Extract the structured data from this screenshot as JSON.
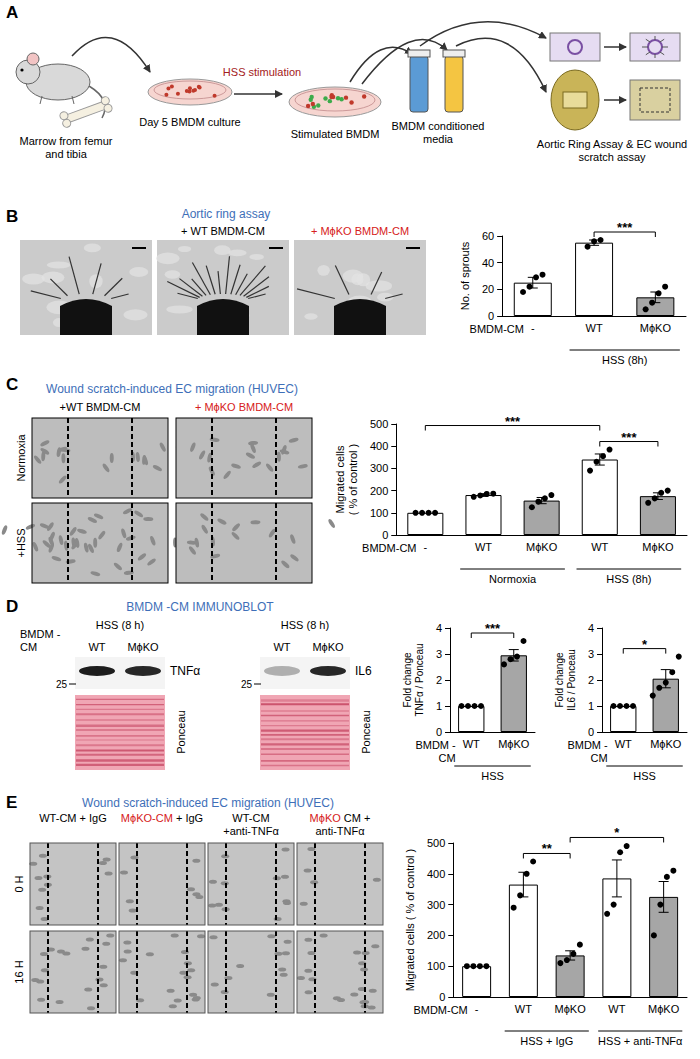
{
  "panels": {
    "A": {
      "letter": "A",
      "marrow": "Marrow from femur and tibia",
      "culture": "Day 5 BMDM culture",
      "stimulation": "HSS stimulation",
      "stimulated": "Stimulated BMDM",
      "media": "BMDM conditioned media",
      "assay": "Aortic Ring Assay & EC wound scratch assay"
    },
    "B": {
      "letter": "B",
      "header": "Aortic ring assay",
      "image_titles": [
        "+ WT BMDM-CM",
        "+ MϕKO BMDM-CM"
      ]
    },
    "C": {
      "letter": "C",
      "header": "Wound scratch-induced EC migration (HUVEC)",
      "columns": [
        "+WT BMDM-CM",
        "+ MϕKO BMDM-CM"
      ],
      "rows": [
        "Normoxia",
        "+HSS"
      ]
    },
    "D": {
      "letter": "D",
      "header": "BMDM -CM IMMUNOBLOT",
      "blots": [
        {
          "condition": "HSS (8 h)",
          "row_label": "BMDM - CM",
          "lanes": [
            "WT",
            "MϕKO"
          ],
          "protein": "TNFα",
          "marker": 25,
          "loading": "Ponceau"
        },
        {
          "condition": "HSS (8 h)",
          "lanes": [
            "WT",
            "MϕKO"
          ],
          "protein": "IL6",
          "marker": 25,
          "loading": "Ponceau"
        }
      ]
    },
    "E": {
      "letter": "E",
      "header": "Wound scratch-induced EC migration (HUVEC)",
      "columns": [
        "WT-CM + IgG",
        "MϕKO-CM + IgG",
        "WT-CM +anti-TNFα",
        "MϕKO CM + anti-TNFα"
      ],
      "rows": [
        "0 H",
        "16 H"
      ]
    }
  },
  "chart_data": [
    {
      "type": "bar",
      "y_label": "No. of sprouts",
      "row_label": "BMDM-CM",
      "categories": [
        "-",
        "WT",
        "MϕKO"
      ],
      "values": [
        25,
        55,
        14
      ],
      "errors": [
        4,
        2,
        4
      ],
      "points": [
        [
          18,
          22,
          29,
          31
        ],
        [
          52,
          56,
          57
        ],
        [
          5,
          10,
          17,
          22
        ]
      ],
      "colors": [
        "#ffffff",
        "#ffffff",
        "#a6a6a6"
      ],
      "ylim": [
        0,
        60
      ],
      "yticks": [
        0,
        20,
        40,
        60
      ],
      "grid": false,
      "significance": [
        {
          "label": "***",
          "from": 1,
          "to": 2
        }
      ],
      "groups": [
        {
          "label": "HSS (8h)",
          "from": 1,
          "to": 2
        }
      ]
    },
    {
      "type": "bar",
      "y_label": "Migrated cells ( % of control )",
      "row_label": "BMDM-CM",
      "categories": [
        "-",
        "WT",
        "MϕKO",
        "WT",
        "MϕKO"
      ],
      "values": [
        100,
        180,
        155,
        340,
        175
      ],
      "errors": [
        0,
        6,
        14,
        25,
        15
      ],
      "points": [
        [
          100,
          100,
          100,
          100
        ],
        [
          172,
          178,
          185,
          186
        ],
        [
          125,
          150,
          165,
          180
        ],
        [
          290,
          330,
          355,
          385
        ],
        [
          145,
          165,
          190,
          200
        ]
      ],
      "colors": [
        "#ffffff",
        "#ffffff",
        "#a6a6a6",
        "#ffffff",
        "#a6a6a6"
      ],
      "ylim": [
        0,
        500
      ],
      "yticks": [
        0,
        100,
        200,
        300,
        400,
        500
      ],
      "grid": false,
      "significance": [
        {
          "label": "***",
          "from": 3,
          "to": 4
        },
        {
          "label": "***",
          "from": 0,
          "to": 3
        }
      ],
      "groups": [
        {
          "label": "Normoxia",
          "from": 1,
          "to": 2
        },
        {
          "label": "HSS (8h)",
          "from": 3,
          "to": 4
        }
      ]
    },
    {
      "type": "bar",
      "y_label": "Fold change TNFα / Ponceau",
      "row_label": "BMDM - CM",
      "categories": [
        "WT",
        "MϕKO"
      ],
      "values": [
        1,
        2.95
      ],
      "errors": [
        0,
        0.22
      ],
      "points": [
        [
          1,
          1,
          1,
          1
        ],
        [
          2.6,
          2.8,
          2.9,
          3.5
        ]
      ],
      "colors": [
        "#ffffff",
        "#a6a6a6"
      ],
      "ylim": [
        0,
        4
      ],
      "yticks": [
        0,
        1,
        2,
        3,
        4
      ],
      "grid": false,
      "significance": [
        {
          "label": "***",
          "from": 0,
          "to": 1
        }
      ],
      "groups": [
        {
          "label": "HSS",
          "from": 0,
          "to": 1
        }
      ]
    },
    {
      "type": "bar",
      "y_label": "Fold change IL6 / Ponceau",
      "row_label": "BMDM - CM",
      "categories": [
        "WT",
        "MϕKO"
      ],
      "values": [
        1,
        2.05
      ],
      "errors": [
        0,
        0.35
      ],
      "points": [
        [
          1,
          1,
          1,
          1
        ],
        [
          1.4,
          1.7,
          1.9,
          2.3,
          2.9
        ]
      ],
      "colors": [
        "#ffffff",
        "#a6a6a6"
      ],
      "ylim": [
        0,
        4
      ],
      "yticks": [
        0,
        1,
        2,
        3,
        4
      ],
      "grid": false,
      "significance": [
        {
          "label": "*",
          "from": 0,
          "to": 1
        }
      ],
      "groups": [
        {
          "label": "HSS",
          "from": 0,
          "to": 1
        }
      ]
    },
    {
      "type": "bar",
      "y_label": "Migrated cells ( % of control )",
      "row_label": "BMDM-CM",
      "categories": [
        "-",
        "WT",
        "MϕKO",
        "WT",
        "MϕKO"
      ],
      "values": [
        100,
        365,
        135,
        385,
        325
      ],
      "errors": [
        0,
        40,
        15,
        60,
        50
      ],
      "points": [
        [
          100,
          100,
          100,
          100
        ],
        [
          290,
          330,
          400,
          440
        ],
        [
          110,
          120,
          140,
          170
        ],
        [
          270,
          300,
          470,
          490
        ],
        [
          200,
          300,
          390,
          410
        ]
      ],
      "colors": [
        "#ffffff",
        "#ffffff",
        "#a6a6a6",
        "#ffffff",
        "#a6a6a6"
      ],
      "ylim": [
        0,
        500
      ],
      "yticks": [
        0,
        100,
        200,
        300,
        400,
        500
      ],
      "grid": false,
      "significance": [
        {
          "label": "**",
          "from": 1,
          "to": 2
        },
        {
          "label": "*",
          "from": 2,
          "to": 4
        }
      ],
      "groups": [
        {
          "label": "HSS + IgG",
          "from": 1,
          "to": 2
        },
        {
          "label": "HSS + anti-TNFα",
          "from": 3,
          "to": 4
        }
      ]
    }
  ]
}
